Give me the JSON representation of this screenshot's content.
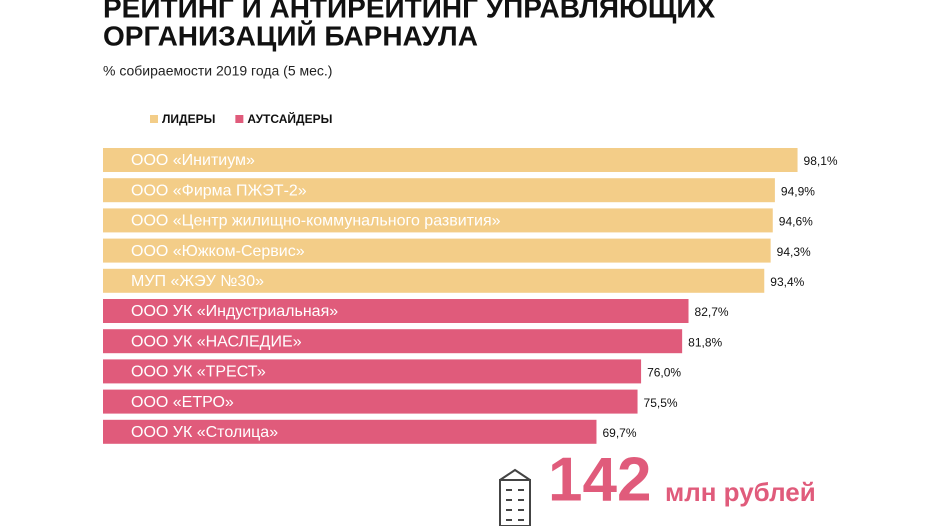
{
  "chart_data": {
    "type": "bar",
    "title": [
      "РЕЙТИНГ И АНТИРЕЙТИНГ УПРАВЛЯЮЩИХ",
      "ОРГАНИЗАЦИЙ БАРНАУЛА"
    ],
    "subtitle": "% собираемости 2019 года (5 мес.)",
    "series": [
      {
        "name": "ЛИДЕРЫ",
        "color": "#f3cd88",
        "categories": [
          "ООО «Инитиум»",
          "ООО «Фирма ПЖЭТ-2»",
          "ООО «Центр жилищно-коммунального развития»",
          "ООО «Южком-Сервис»",
          "МУП «ЖЭУ №30»"
        ],
        "values": [
          98.1,
          94.9,
          94.6,
          94.3,
          93.4
        ],
        "value_labels": [
          "98,1%",
          "94,9%",
          "94,6%",
          "94,3%",
          "93,4%"
        ]
      },
      {
        "name": "АУТСАЙДЕРЫ",
        "color": "#e05b7b",
        "categories": [
          "ООО УК «Индустриальная»",
          "ООО УК «НАСЛЕДИЕ»",
          "ООО УК «ТРЕСТ»",
          "ООО «ЕТРО»",
          "ООО УК «Столица»"
        ],
        "values": [
          82.7,
          81.8,
          76.0,
          75.5,
          69.7
        ],
        "value_labels": [
          "82,7%",
          "81,8%",
          "76,0%",
          "75,5%",
          "69,7%"
        ]
      }
    ],
    "annotation": {
      "number": "142",
      "unit": "млн рублей"
    }
  }
}
